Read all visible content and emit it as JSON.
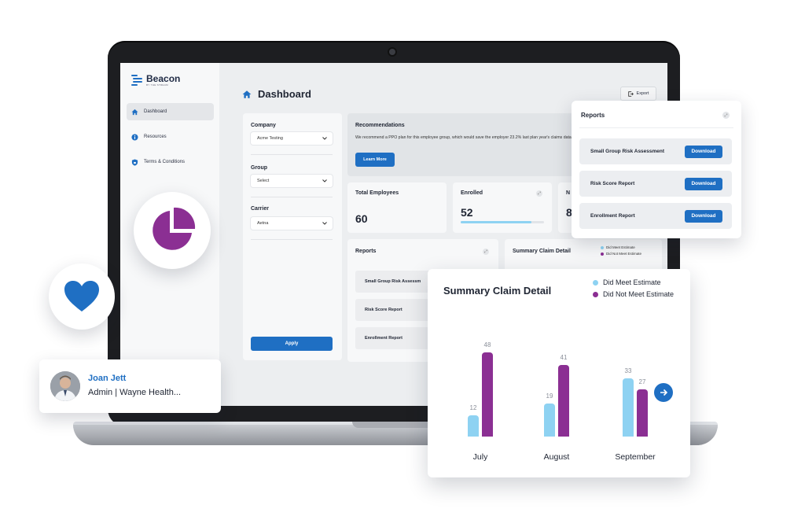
{
  "app": {
    "logo_text": "Beacon",
    "logo_subtext": "BY THE STREAM"
  },
  "sidebar": {
    "items": [
      {
        "label": "Dashboard",
        "icon": "home-icon",
        "active": true
      },
      {
        "label": "Resources",
        "icon": "info-icon",
        "active": false
      },
      {
        "label": "Terms & Conditions",
        "icon": "shield-icon",
        "active": false
      }
    ]
  },
  "header": {
    "title": "Dashboard",
    "export_label": "Export"
  },
  "filters": {
    "company_label": "Company",
    "company_value": "Acme Testing",
    "group_label": "Group",
    "group_value": "Select",
    "carrier_label": "Carrier",
    "carrier_value": "Aetna",
    "apply_label": "Apply"
  },
  "recommendations": {
    "title": "Recommendations",
    "text": "We recommend a PPO plan for this employee group, which would save the employer 23.2% last plan year's claims data.",
    "button_label": "Learn More"
  },
  "stats": {
    "total_employees_label": "Total Employees",
    "total_employees_value": "60",
    "enrolled_label": "Enrolled",
    "enrolled_value": "52",
    "enrolled_progress": 0.85,
    "third_label": "N",
    "third_value": "8"
  },
  "reports_panel": {
    "title": "Reports",
    "items": [
      "Small Group Risk Assessm",
      "Risk Score Report",
      "Enrollment Report"
    ]
  },
  "claims_panel": {
    "title": "Summary Claim Detail",
    "legend": [
      "Did Meet Estimate",
      "Did Not Meet Estimate"
    ]
  },
  "float_reports": {
    "title": "Reports",
    "items": [
      {
        "label": "Small Group Risk Assessment",
        "button": "Download"
      },
      {
        "label": "Risk Score Report",
        "button": "Download"
      },
      {
        "label": "Enrollment Report",
        "button": "Download"
      }
    ]
  },
  "user": {
    "name": "Joan Jett",
    "role": "Admin | Wayne Health..."
  },
  "colors": {
    "accent": "#1f6fc3",
    "meet": "#8ed2f2",
    "not_meet": "#8b2f93"
  },
  "chart_data": {
    "type": "bar",
    "title": "Summary Claim Detail",
    "categories": [
      "July",
      "August",
      "September"
    ],
    "series": [
      {
        "name": "Did Meet Estimate",
        "values": [
          12,
          19,
          33
        ]
      },
      {
        "name": "Did Not Meet Estimate",
        "values": [
          48,
          41,
          27
        ]
      }
    ],
    "legend": "top-right",
    "grid": false,
    "ylim": [
      0,
      48
    ]
  }
}
